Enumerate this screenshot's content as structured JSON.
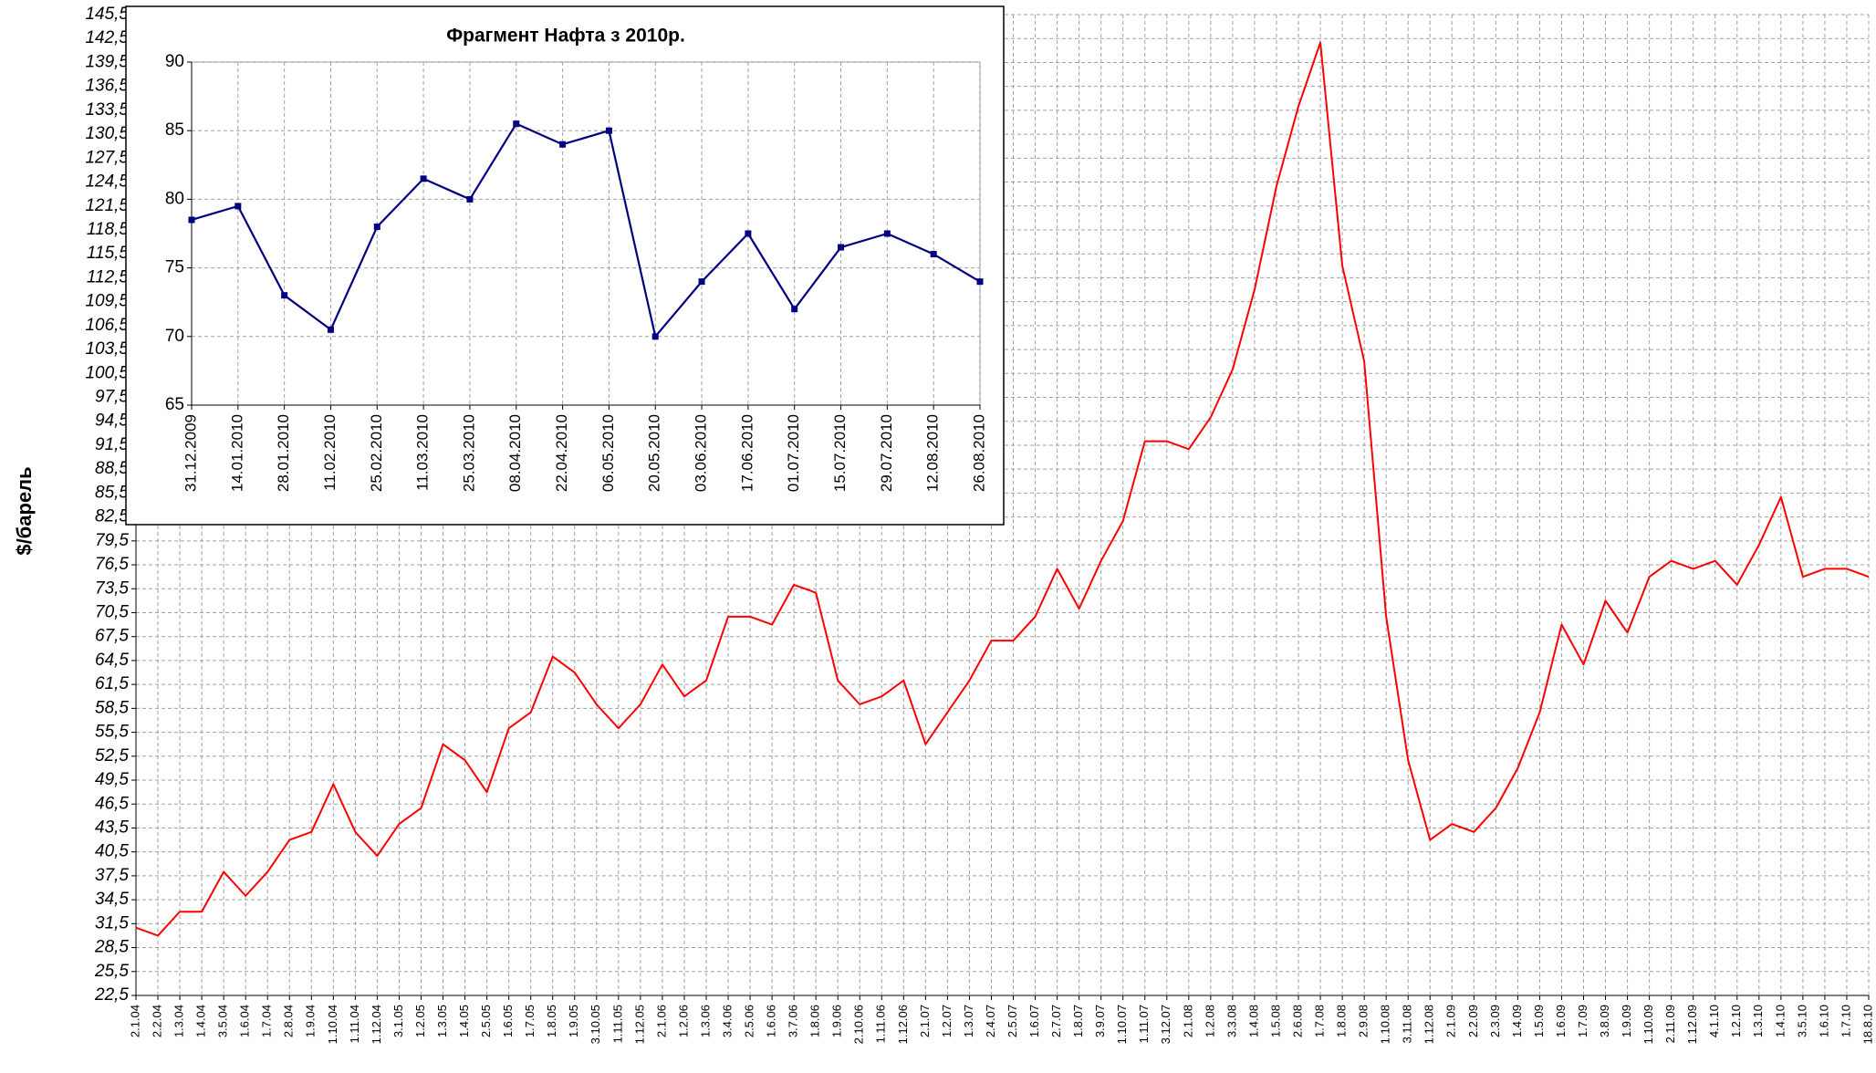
{
  "chart_data": [
    {
      "type": "line",
      "y_label": "$/барель",
      "categories": [
        "2.1.04",
        "2.2.04",
        "1.3.04",
        "1.4.04",
        "3.5.04",
        "1.6.04",
        "1.7.04",
        "2.8.04",
        "1.9.04",
        "1.10.04",
        "1.11.04",
        "1.12.04",
        "3.1.05",
        "1.2.05",
        "1.3.05",
        "1.4.05",
        "2.5.05",
        "1.6.05",
        "1.7.05",
        "1.8.05",
        "1.9.05",
        "3.10.05",
        "1.11.05",
        "1.12.05",
        "2.1.06",
        "1.2.06",
        "1.3.06",
        "3.4.06",
        "2.5.06",
        "1.6.06",
        "3.7.06",
        "1.8.06",
        "1.9.06",
        "2.10.06",
        "1.11.06",
        "1.12.06",
        "2.1.07",
        "1.2.07",
        "1.3.07",
        "2.4.07",
        "2.5.07",
        "1.6.07",
        "2.7.07",
        "1.8.07",
        "3.9.07",
        "1.10.07",
        "1.11.07",
        "3.12.07",
        "2.1.08",
        "1.2.08",
        "3.3.08",
        "1.4.08",
        "1.5.08",
        "2.6.08",
        "1.7.08",
        "1.8.08",
        "2.9.08",
        "1.10.08",
        "3.11.08",
        "1.12.08",
        "2.1.09",
        "2.2.09",
        "2.3.09",
        "1.4.09",
        "1.5.09",
        "1.6.09",
        "1.7.09",
        "3.8.09",
        "1.9.09",
        "1.10.09",
        "2.11.09",
        "1.12.09",
        "4.1.10",
        "1.2.10",
        "1.3.10",
        "1.4.10",
        "3.5.10",
        "1.6.10",
        "1.7.10",
        "18.8.10"
      ],
      "series": [
        {
          "color": "#ff0000",
          "values": [
            31,
            30,
            33,
            33,
            38,
            35,
            38,
            42,
            43,
            49,
            43,
            40,
            44,
            46,
            54,
            52,
            48,
            56,
            58,
            65,
            63,
            59,
            56,
            59,
            64,
            60,
            62,
            70,
            70,
            69,
            74,
            73,
            62,
            59,
            60,
            62,
            54,
            58,
            62,
            67,
            67,
            70,
            76,
            71,
            77,
            82,
            92,
            92,
            91,
            95,
            101,
            111,
            124,
            134,
            142,
            114,
            102,
            70,
            52,
            42,
            44,
            43,
            46,
            51,
            58,
            69,
            64,
            72,
            68,
            75,
            77,
            76,
            77,
            74,
            79,
            85,
            75,
            76,
            76,
            75
          ]
        }
      ],
      "ylim": [
        22.5,
        145.5
      ],
      "yticks": [
        {
          "value": 22.5,
          "label": "22,5"
        },
        {
          "value": 25.5,
          "label": "25,5"
        },
        {
          "value": 28.5,
          "label": "28,5"
        },
        {
          "value": 31.5,
          "label": "31,5"
        },
        {
          "value": 34.5,
          "label": "34,5"
        },
        {
          "value": 37.5,
          "label": "37,5"
        },
        {
          "value": 40.5,
          "label": "40,5"
        },
        {
          "value": 43.5,
          "label": "43,5"
        },
        {
          "value": 46.5,
          "label": "46,5"
        },
        {
          "value": 49.5,
          "label": "49,5"
        },
        {
          "value": 52.5,
          "label": "52,5"
        },
        {
          "value": 55.5,
          "label": "55,5"
        },
        {
          "value": 58.5,
          "label": "58,5"
        },
        {
          "value": 61.5,
          "label": "61,5"
        },
        {
          "value": 64.5,
          "label": "64,5"
        },
        {
          "value": 67.5,
          "label": "67,5"
        },
        {
          "value": 70.5,
          "label": "70,5"
        },
        {
          "value": 73.5,
          "label": "73,5"
        },
        {
          "value": 76.5,
          "label": "76,5"
        },
        {
          "value": 79.5,
          "label": "79,5"
        },
        {
          "value": 82.5,
          "label": "82,5"
        },
        {
          "value": 85.5,
          "label": "85,5"
        },
        {
          "value": 88.5,
          "label": "88,5"
        },
        {
          "value": 91.5,
          "label": "91,5"
        },
        {
          "value": 94.5,
          "label": "94,5"
        },
        {
          "value": 97.5,
          "label": "97,5"
        },
        {
          "value": 100.5,
          "label": "100,5"
        },
        {
          "value": 103.5,
          "label": "103,5"
        },
        {
          "value": 106.5,
          "label": "106,5"
        },
        {
          "value": 109.5,
          "label": "109,5"
        },
        {
          "value": 112.5,
          "label": "112,5"
        },
        {
          "value": 115.5,
          "label": "115,5"
        },
        {
          "value": 118.5,
          "label": "118,5"
        },
        {
          "value": 121.5,
          "label": "121,5"
        },
        {
          "value": 124.5,
          "label": "124,5"
        },
        {
          "value": 127.5,
          "label": "127,5"
        },
        {
          "value": 130.5,
          "label": "130,5"
        },
        {
          "value": 133.5,
          "label": "133,5"
        },
        {
          "value": 136.5,
          "label": "136,5"
        },
        {
          "value": 139.5,
          "label": "139,5"
        },
        {
          "value": 142.5,
          "label": "142,5"
        },
        {
          "value": 145.5,
          "label": "145,5"
        }
      ],
      "grid": true
    },
    {
      "type": "line",
      "title": "Фрагмент Нафта з 2010р.",
      "categories": [
        "31.12.2009",
        "14.01.2010",
        "28.01.2010",
        "11.02.2010",
        "25.02.2010",
        "11.03.2010",
        "25.03.2010",
        "08.04.2010",
        "22.04.2010",
        "06.05.2010",
        "20.05.2010",
        "03.06.2010",
        "17.06.2010",
        "01.07.2010",
        "15.07.2010",
        "29.07.2010",
        "12.08.2010",
        "26.08.2010"
      ],
      "series": [
        {
          "color": "#000080",
          "values": [
            78.5,
            79.5,
            73,
            70.5,
            78,
            81.5,
            80,
            85.5,
            84,
            85,
            70,
            74,
            77.5,
            72,
            76.5,
            77.5,
            76,
            74
          ]
        }
      ],
      "ylim": [
        65,
        90
      ],
      "yticks": [
        65,
        70,
        75,
        80,
        85,
        90
      ],
      "grid": true,
      "marker": "square"
    }
  ]
}
